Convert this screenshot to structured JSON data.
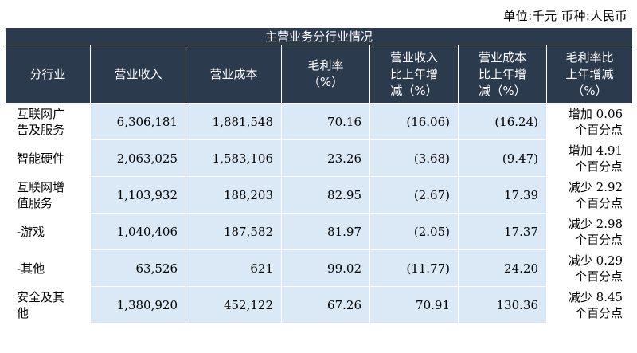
{
  "unit_text": "单位:千元   币种:人民币",
  "table_title": "主营业务分行业情况",
  "headers": [
    "分行业",
    "营业收入",
    "营业成本",
    "毛利率\n（%）",
    "营业收入\n比上年增\n减（%）",
    "营业成本\n比上年增\n减（%）",
    "毛利率比\n上年增减\n（%）"
  ],
  "rows": [
    {
      "industry": "互联网广\n告及服务",
      "revenue": "6,306,181",
      "cost": "1,881,548",
      "margin": "70.16",
      "rev_change": "(16.06)",
      "cost_change": "(16.24)",
      "margin_change": "增加 0.06\n个百分点"
    },
    {
      "industry": "智能硬件",
      "revenue": "2,063,025",
      "cost": "1,583,106",
      "margin": "23.26",
      "rev_change": "(3.68)",
      "cost_change": "(9.47)",
      "margin_change": "增加 4.91\n个百分点"
    },
    {
      "industry": "互联网增\n值服务",
      "revenue": "1,103,932",
      "cost": "188,203",
      "margin": "82.95",
      "rev_change": "(2.67)",
      "cost_change": "17.39",
      "margin_change": "减少 2.92\n个百分点"
    },
    {
      "industry": "-游戏",
      "revenue": "1,040,406",
      "cost": "187,582",
      "margin": "81.97",
      "rev_change": "(2.05)",
      "cost_change": "17.37",
      "margin_change": "减少 2.98\n个百分点"
    },
    {
      "industry": "-其他",
      "revenue": "63,526",
      "cost": "621",
      "margin": "99.02",
      "rev_change": "(11.77)",
      "cost_change": "24.20",
      "margin_change": "减少 0.29\n个百分点"
    },
    {
      "industry": "安全及其\n他",
      "revenue": "1,380,920",
      "cost": "452,122",
      "margin": "67.26",
      "rev_change": "70.91",
      "cost_change": "130.36",
      "margin_change": "减少 8.45\n个百分点"
    }
  ]
}
